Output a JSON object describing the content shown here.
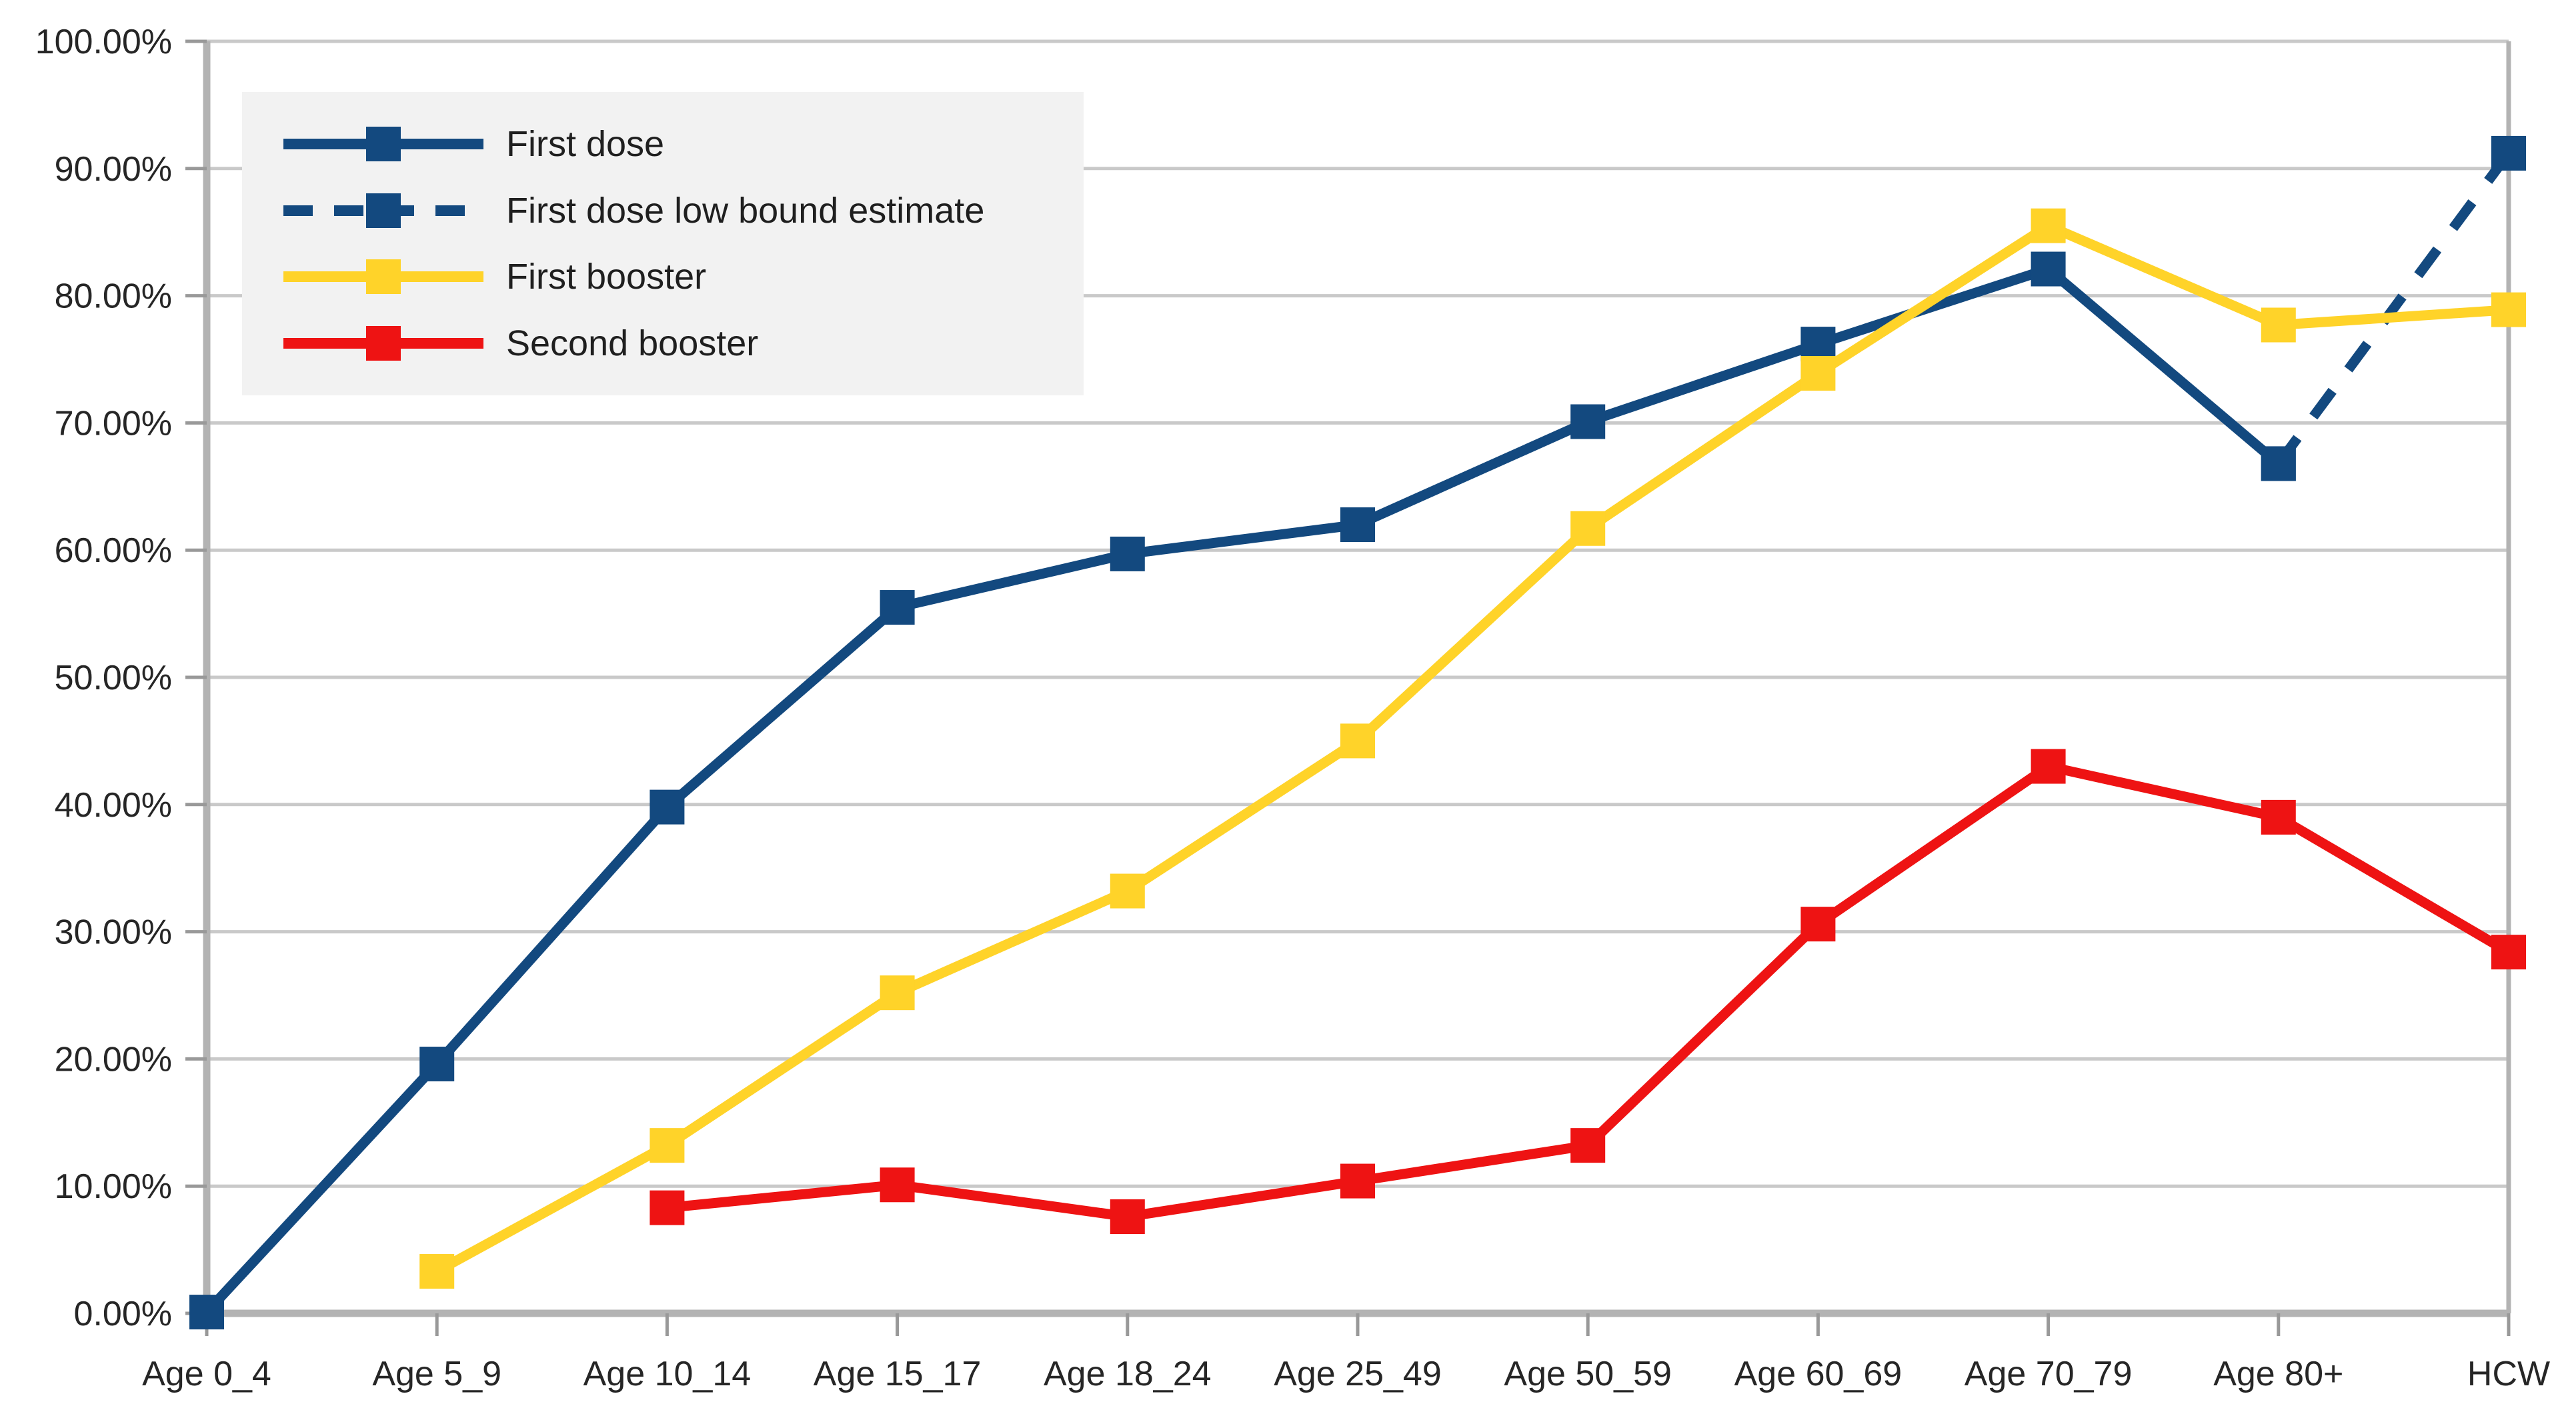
{
  "chart_data": {
    "type": "line",
    "title": "",
    "categories": [
      "Age 0_4",
      "Age 5_9",
      "Age 10_14",
      "Age 15_17",
      "Age 18_24",
      "Age 25_49",
      "Age 50_59",
      "Age 60_69",
      "Age 70_79",
      "Age 80+",
      "HCW"
    ],
    "series": [
      {
        "name": "First dose",
        "color": "#13497F",
        "line_style": "solid",
        "marker": "square",
        "values": [
          0.1,
          19.6,
          39.8,
          55.5,
          59.7,
          62.0,
          70.1,
          76.2,
          82.1,
          66.8,
          null
        ]
      },
      {
        "name": "First dose low bound estimate",
        "color": "#13497F",
        "line_style": "dashed",
        "marker": "square",
        "values": [
          null,
          null,
          null,
          null,
          null,
          null,
          null,
          null,
          null,
          66.8,
          91.2
        ]
      },
      {
        "name": "First booster",
        "color": "#FFD329",
        "line_style": "solid",
        "marker": "square",
        "values": [
          null,
          3.3,
          13.2,
          25.2,
          33.2,
          45.0,
          61.7,
          73.9,
          85.5,
          77.7,
          78.9
        ]
      },
      {
        "name": "Second booster",
        "color": "#EE1313",
        "line_style": "solid",
        "marker": "square",
        "values": [
          null,
          null,
          8.3,
          10.1,
          7.6,
          10.4,
          13.2,
          30.6,
          43.0,
          39.0,
          28.4
        ]
      }
    ],
    "y_axis": {
      "min": 0,
      "max": 100,
      "step": 10,
      "tick_labels": [
        "100.00%",
        "90.00%",
        "80.00%",
        "70.00%",
        "60.00%",
        "50.00%",
        "40.00%",
        "30.00%",
        "20.00%",
        "10.00%",
        "0.00%"
      ]
    },
    "grid": true,
    "legend_position": "top-left-inside",
    "colors": {
      "background": "#FFFFFF",
      "grid": "#C9C9C9",
      "axis": "#B3B3B3",
      "tick": "#999999",
      "text": "#262626",
      "legend_bg": "#F2F2F2"
    }
  }
}
